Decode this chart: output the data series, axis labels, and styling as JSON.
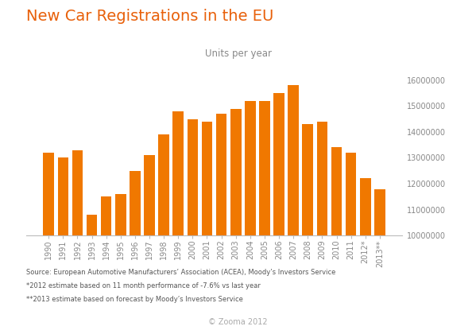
{
  "title": "New Car Registrations in the EU",
  "subtitle": "Units per year",
  "bar_color": "#F07800",
  "background_color": "#FFFFFF",
  "years": [
    "1990",
    "1991",
    "1992",
    "1993",
    "1994",
    "1995",
    "1996",
    "1997",
    "1998",
    "1999",
    "2000",
    "2001",
    "2002",
    "2003",
    "2004",
    "2005",
    "2006",
    "2007",
    "2008",
    "2009",
    "2010",
    "2011",
    "2012*",
    "2013**"
  ],
  "values": [
    13200000,
    13000000,
    13300000,
    10800000,
    11500000,
    11600000,
    12500000,
    13100000,
    13900000,
    14800000,
    14500000,
    14400000,
    14700000,
    14900000,
    15200000,
    15200000,
    15500000,
    15800000,
    14300000,
    14400000,
    13400000,
    13200000,
    12200000,
    11800000
  ],
  "ylim": [
    10000000,
    16000000
  ],
  "yticks": [
    10000000,
    11000000,
    12000000,
    13000000,
    14000000,
    15000000,
    16000000
  ],
  "title_color": "#E8600A",
  "subtitle_color": "#888888",
  "axis_color": "#BBBBBB",
  "tick_color": "#888888",
  "footnote1": "Source: European Automotive Manufacturers’ Association (ACEA), Moody’s Investors Service",
  "footnote2": "*2012 estimate based on 11 month performance of -7.6% vs last year",
  "footnote3": "**2013 estimate based on forecast by Moody’s Investors Service",
  "copyright": "© Zooma 2012"
}
